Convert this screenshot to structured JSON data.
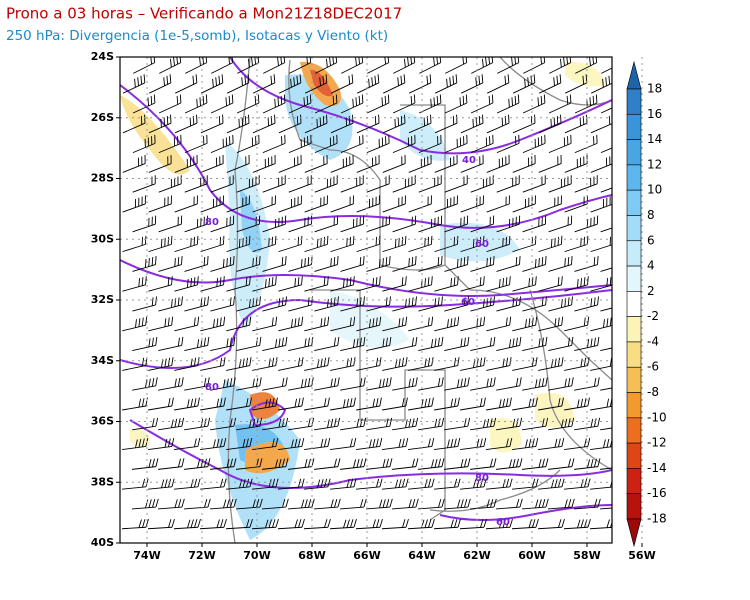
{
  "header": {
    "title": "Prono a 03 horas – Verificando a Mon21Z18DEC2017",
    "subtitle": "250 hPa: Divergencia (1e-5,somb), Isotacas y Viento (kt)"
  },
  "map": {
    "lat_labels": [
      "24S",
      "26S",
      "28S",
      "30S",
      "32S",
      "34S",
      "36S",
      "38S",
      "40S"
    ],
    "lon_labels": [
      "74W",
      "72W",
      "70W",
      "68W",
      "66W",
      "64W",
      "62W",
      "60W",
      "58W",
      "56W"
    ],
    "contour_labels": [
      "40",
      "60",
      "60",
      "80",
      "80",
      "80",
      "60"
    ]
  },
  "colorbar": {
    "labels": [
      18,
      16,
      14,
      12,
      10,
      8,
      6,
      4,
      2,
      -2,
      -4,
      -6,
      -8,
      -10,
      -12,
      -14,
      -16,
      -18
    ],
    "colors": [
      "#1e64a8",
      "#2f80c8",
      "#3a95d8",
      "#4aa5e4",
      "#5bb7ee",
      "#7ecbf5",
      "#a3dcf8",
      "#c6ebfa",
      "#e2f6fc",
      "#ffffff",
      "#fcf4b6",
      "#f9dd85",
      "#f6bf55",
      "#f39a2f",
      "#ec6e1e",
      "#e04516",
      "#cd2213",
      "#b8120e",
      "#9a0a0a"
    ]
  }
}
